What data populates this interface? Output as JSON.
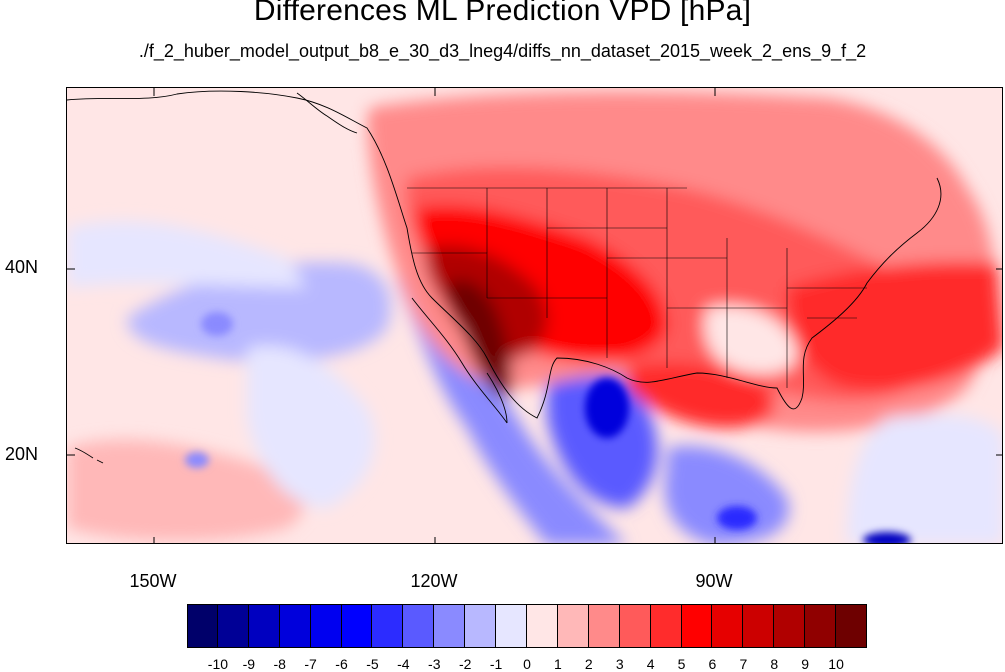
{
  "title": "Differences ML Prediction VPD [hPa]",
  "subtitle": "./f_2_huber_model_output_b8_e_30_d3_lneg4/diffs_nn_dataset_2015_week_2_ens_9_f_2",
  "map": {
    "lat_labels": [
      "40N",
      "20N"
    ],
    "lon_labels": [
      "150W",
      "120W",
      "90W"
    ]
  },
  "colorbar": {
    "labels": [
      "-10",
      "-9",
      "-8",
      "-7",
      "-6",
      "-5",
      "-4",
      "-3",
      "-2",
      "-1",
      "0",
      "1",
      "2",
      "3",
      "4",
      "5",
      "6",
      "7",
      "8",
      "9",
      "10"
    ],
    "colors": [
      "#00006a",
      "#000096",
      "#0000c0",
      "#0000dc",
      "#0000f0",
      "#0000ff",
      "#2c2cff",
      "#5a5aff",
      "#8a8aff",
      "#b8b8ff",
      "#e6e6ff",
      "#ffe6e6",
      "#ffb8b8",
      "#ff8a8a",
      "#ff5a5a",
      "#ff2c2c",
      "#ff0000",
      "#e60000",
      "#cc0000",
      "#b00000",
      "#900000",
      "#6e0000"
    ]
  }
}
